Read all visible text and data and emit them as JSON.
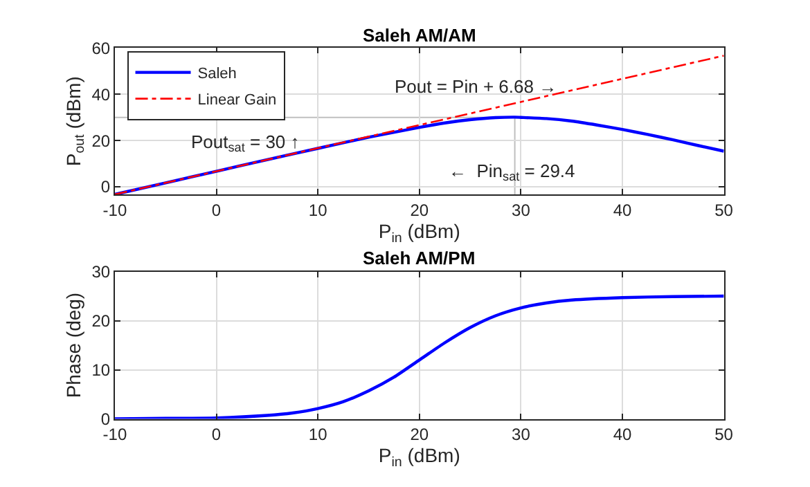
{
  "chart_data": [
    {
      "type": "line",
      "title": "Saleh AM/AM",
      "xlabel": "P$_{in}$ (dBm)",
      "ylabel": "P$_{out}$ (dBm)",
      "xlim": [
        -10,
        50
      ],
      "ylim": [
        -3.3,
        60
      ],
      "xticks": [
        -10,
        0,
        10,
        20,
        30,
        40,
        50
      ],
      "yticks": [
        0,
        20,
        40,
        60
      ],
      "grid": true,
      "legend": "top left",
      "series": [
        {
          "name": "Saleh",
          "color": "#0000ff",
          "line_style": "solid",
          "x": [
            -10,
            -5,
            0,
            5,
            10,
            15,
            20,
            22.5,
            25,
            27.5,
            29.4,
            30,
            32.5,
            35,
            37.5,
            40,
            42.5,
            45,
            47.5,
            50
          ],
          "values": [
            -3.3,
            1.7,
            6.7,
            11.7,
            16.6,
            21.4,
            25.7,
            27.6,
            29.0,
            29.9,
            30.1,
            30.0,
            29.5,
            28.4,
            26.7,
            24.8,
            22.6,
            20.3,
            17.8,
            15.4
          ]
        },
        {
          "name": "Linear Gain",
          "color": "#ff0000",
          "line_style": "dashed",
          "x": [
            -10,
            50
          ],
          "values": [
            -3.3,
            56.7
          ]
        }
      ],
      "ref_lines": [
        {
          "axis": "y",
          "value": 30,
          "color": "#bfbfbf"
        },
        {
          "axis": "x",
          "value": 29.4,
          "color": "#bfbfbf"
        }
      ],
      "annotations": [
        "Pout = Pin + 6.68 →",
        "Pout$_{sat}$ = 30 ↑",
        "←  Pin$_{sat}$ = 29.4"
      ]
    },
    {
      "type": "line",
      "title": "Saleh AM/PM",
      "xlabel": "P$_{in}$ (dBm)",
      "ylabel": "Phase (deg)",
      "xlim": [
        -10,
        50
      ],
      "ylim": [
        0,
        30
      ],
      "xticks": [
        -10,
        0,
        10,
        20,
        30,
        40,
        50
      ],
      "yticks": [
        0,
        10,
        20,
        30
      ],
      "grid": true,
      "series": [
        {
          "color": "#0000ff",
          "line_style": "solid",
          "x": [
            -10,
            -5,
            0,
            5,
            7.5,
            10,
            12.5,
            15,
            17.5,
            20,
            22.5,
            25,
            27.5,
            30,
            32.5,
            35,
            40,
            45,
            50
          ],
          "values": [
            0.0,
            0.1,
            0.2,
            0.7,
            1.2,
            2.1,
            3.5,
            5.7,
            8.5,
            12.0,
            15.5,
            18.6,
            21.0,
            22.6,
            23.6,
            24.2,
            24.7,
            24.9,
            25.0
          ]
        }
      ]
    }
  ]
}
